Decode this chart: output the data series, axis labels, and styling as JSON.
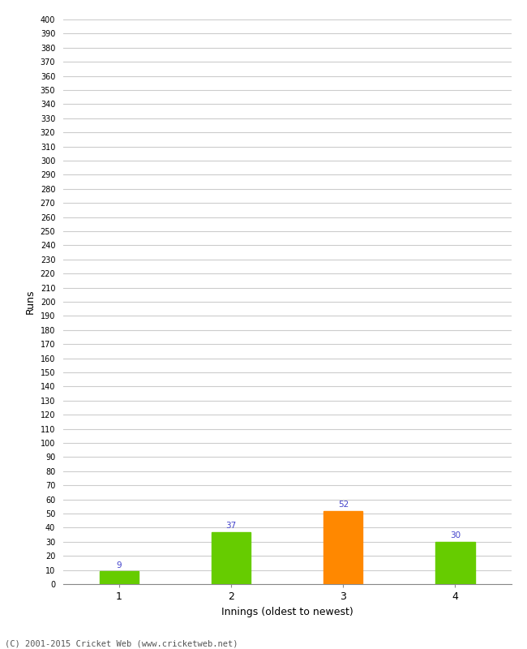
{
  "categories": [
    "1",
    "2",
    "3",
    "4"
  ],
  "values": [
    9,
    37,
    52,
    30
  ],
  "bar_colors": [
    "#66cc00",
    "#66cc00",
    "#ff8800",
    "#66cc00"
  ],
  "ylabel": "Runs",
  "xlabel": "Innings (oldest to newest)",
  "ylim": [
    0,
    400
  ],
  "ytick_step": 10,
  "background_color": "#ffffff",
  "grid_color": "#cccccc",
  "label_color": "#4444cc",
  "label_fontsize": 7.5,
  "footer": "(C) 2001-2015 Cricket Web (www.cricketweb.net)",
  "bar_width": 0.35,
  "figsize": [
    6.5,
    8.0
  ],
  "dpi": 100
}
